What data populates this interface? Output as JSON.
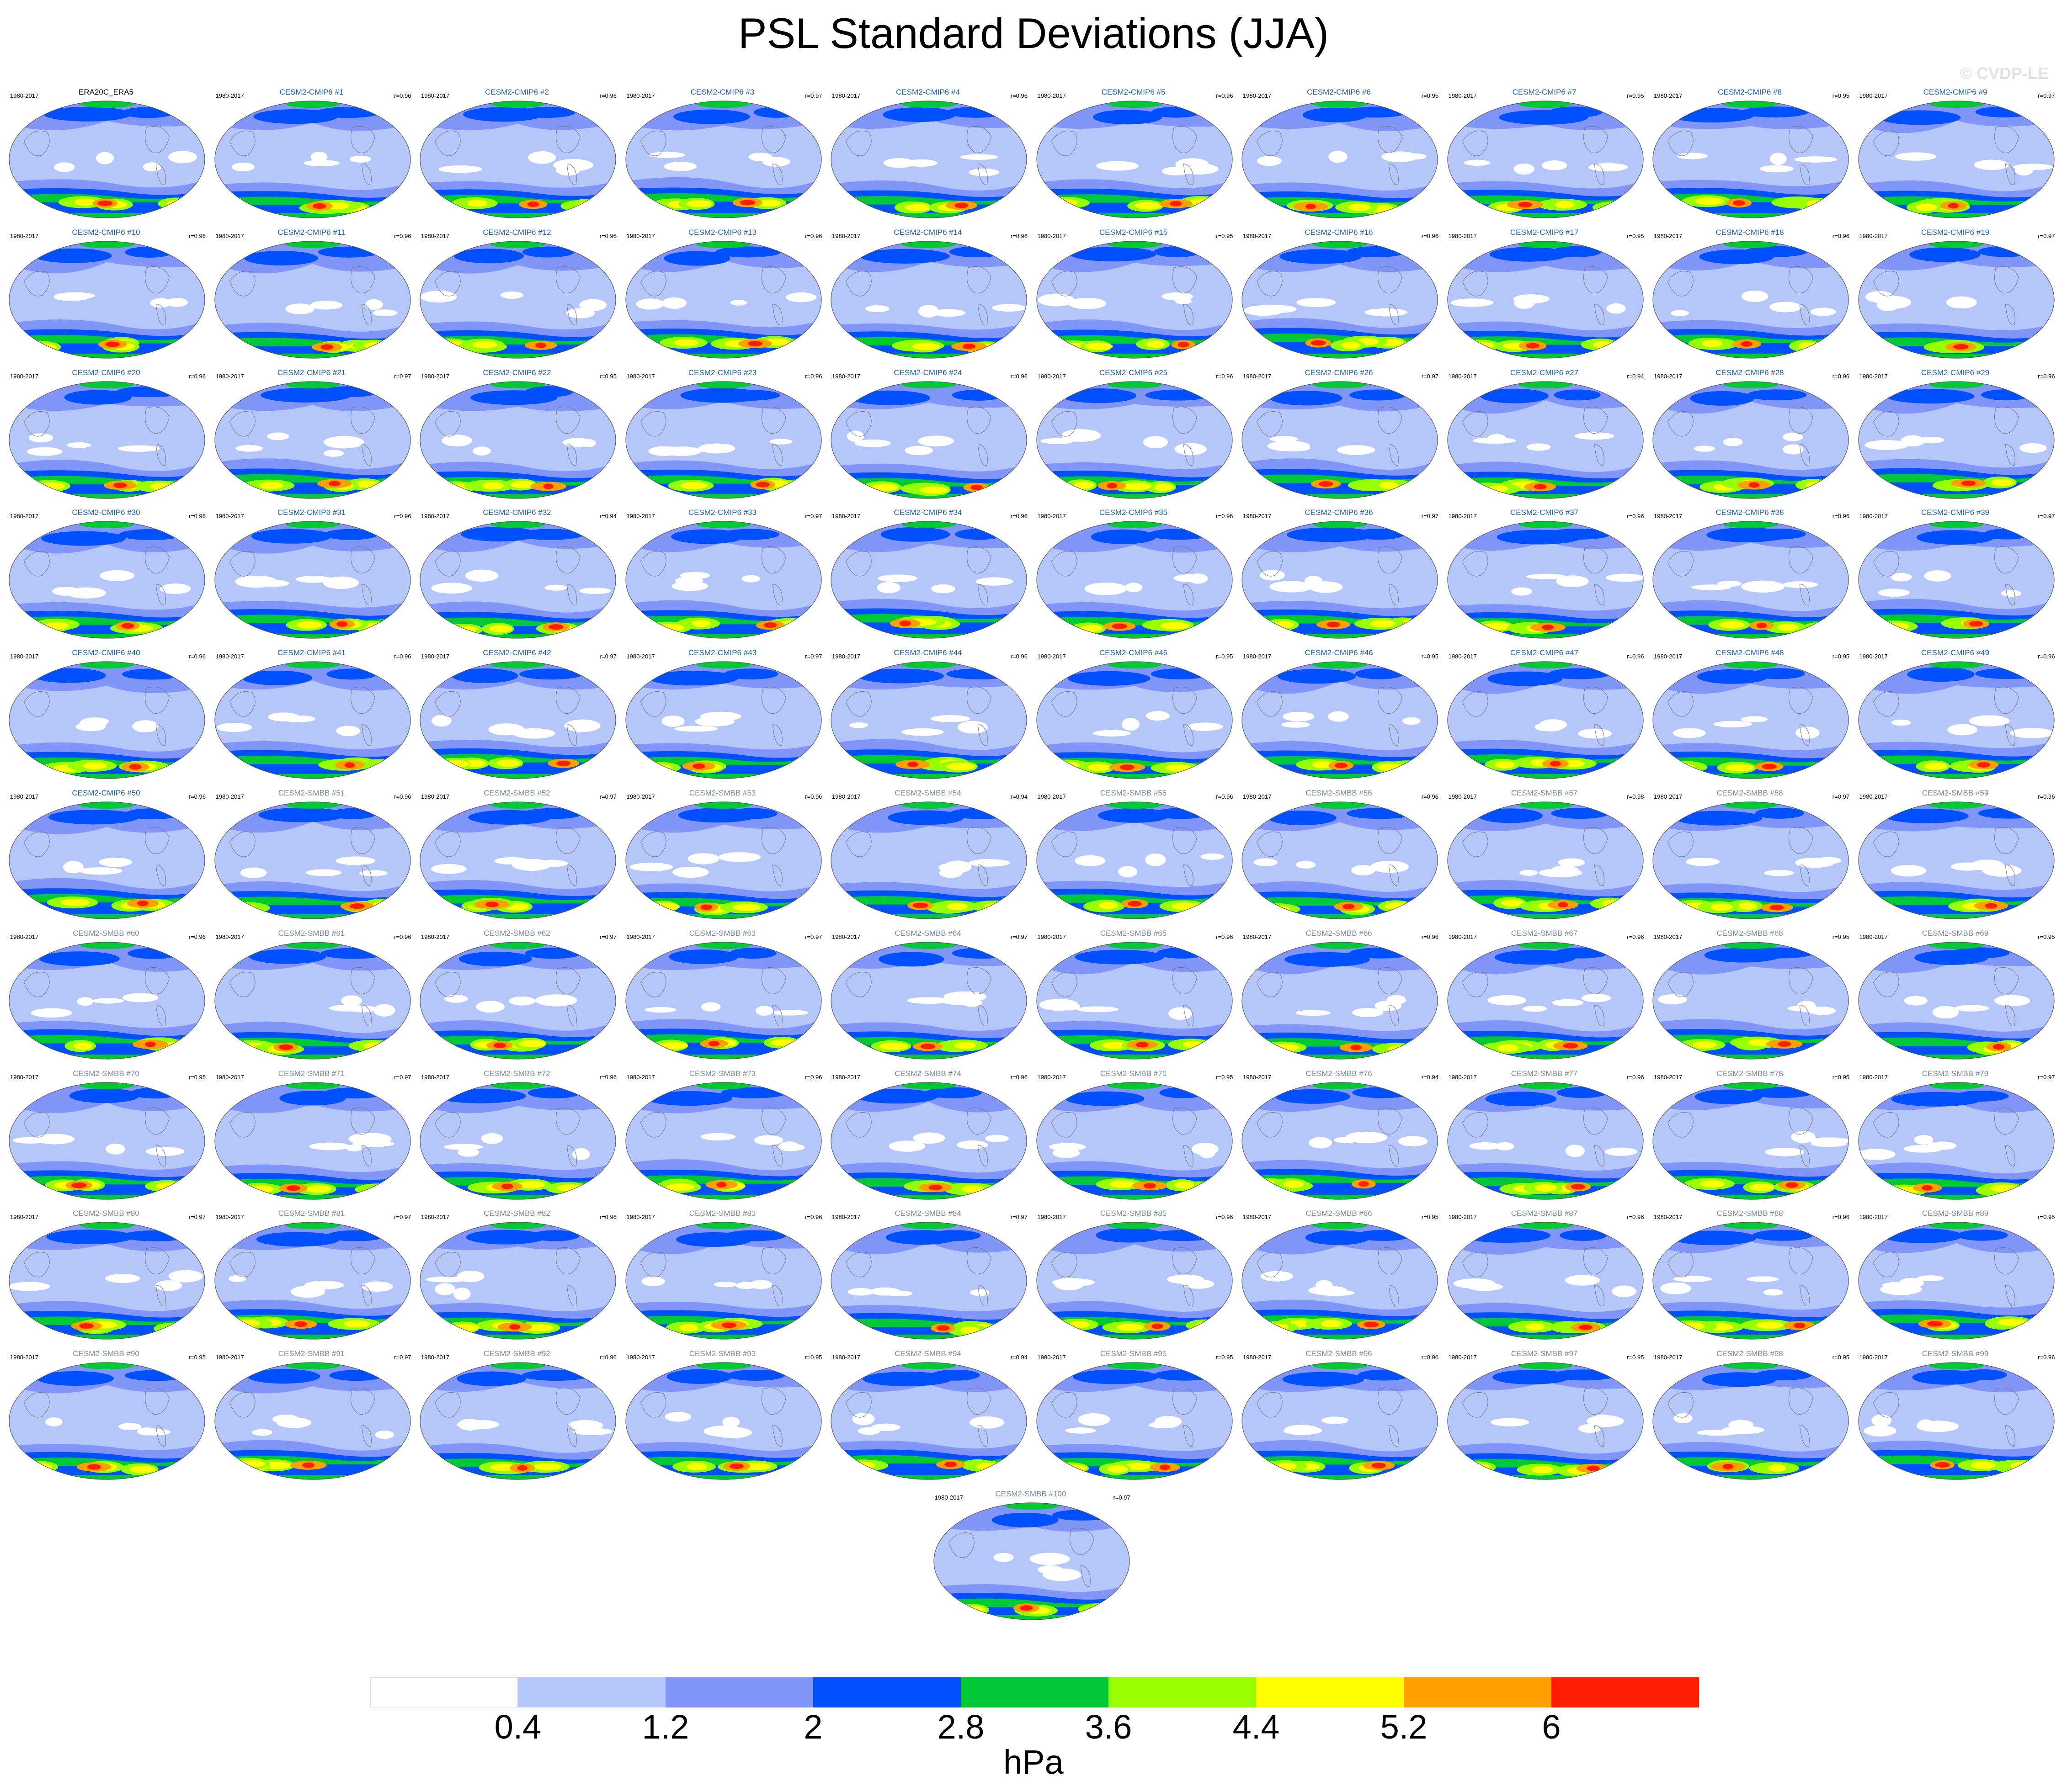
{
  "title": "PSL Standard Deviations (JJA)",
  "watermark": "© CVDP-LE",
  "colorbar": {
    "colors": [
      "#ffffff",
      "#b4c6fa",
      "#8296fa",
      "#0050ff",
      "#00c832",
      "#96ff00",
      "#ffff00",
      "#ffa000",
      "#ff1e00"
    ],
    "labels": [
      "0.4",
      "1.2",
      "2",
      "2.8",
      "3.6",
      "4.4",
      "5.2",
      "6"
    ],
    "units": "hPa"
  },
  "panels": [
    {
      "name": "ERA20C_ERA5",
      "years": "1980-2017",
      "r": ""
    },
    {
      "name": "CESM2-CMIP6 #1",
      "years": "1980-2017",
      "r": "r=0.96"
    },
    {
      "name": "CESM2-CMIP6 #2",
      "years": "1980-2017",
      "r": "r=0.96"
    },
    {
      "name": "CESM2-CMIP6 #3",
      "years": "1980-2017",
      "r": "r=0.97"
    },
    {
      "name": "CESM2-CMIP6 #4",
      "years": "1980-2017",
      "r": "r=0.96"
    },
    {
      "name": "CESM2-CMIP6 #5",
      "years": "1980-2017",
      "r": "r=0.96"
    },
    {
      "name": "CESM2-CMIP6 #6",
      "years": "1980-2017",
      "r": "r=0.95"
    },
    {
      "name": "CESM2-CMIP6 #7",
      "years": "1980-2017",
      "r": "r=0.95"
    },
    {
      "name": "CESM2-CMIP6 #8",
      "years": "1980-2017",
      "r": "r=0.95"
    },
    {
      "name": "CESM2-CMIP6 #9",
      "years": "1980-2017",
      "r": "r=0.97"
    },
    {
      "name": "CESM2-CMIP6 #10",
      "years": "1980-2017",
      "r": "r=0.96"
    },
    {
      "name": "CESM2-CMIP6 #11",
      "years": "1980-2017",
      "r": "r=0.96"
    },
    {
      "name": "CESM2-CMIP6 #12",
      "years": "1980-2017",
      "r": "r=0.96"
    },
    {
      "name": "CESM2-CMIP6 #13",
      "years": "1980-2017",
      "r": "r=0.96"
    },
    {
      "name": "CESM2-CMIP6 #14",
      "years": "1980-2017",
      "r": "r=0.96"
    },
    {
      "name": "CESM2-CMIP6 #15",
      "years": "1980-2017",
      "r": "r=0.95"
    },
    {
      "name": "CESM2-CMIP6 #16",
      "years": "1980-2017",
      "r": "r=0.96"
    },
    {
      "name": "CESM2-CMIP6 #17",
      "years": "1980-2017",
      "r": "r=0.95"
    },
    {
      "name": "CESM2-CMIP6 #18",
      "years": "1980-2017",
      "r": "r=0.96"
    },
    {
      "name": "CESM2-CMIP6 #19",
      "years": "1980-2017",
      "r": "r=0.97"
    },
    {
      "name": "CESM2-CMIP6 #20",
      "years": "1980-2017",
      "r": "r=0.96"
    },
    {
      "name": "CESM2-CMIP6 #21",
      "years": "1980-2017",
      "r": "r=0.97"
    },
    {
      "name": "CESM2-CMIP6 #22",
      "years": "1980-2017",
      "r": "r=0.95"
    },
    {
      "name": "CESM2-CMIP6 #23",
      "years": "1980-2017",
      "r": "r=0.96"
    },
    {
      "name": "CESM2-CMIP6 #24",
      "years": "1980-2017",
      "r": "r=0.96"
    },
    {
      "name": "CESM2-CMIP6 #25",
      "years": "1980-2017",
      "r": "r=0.96"
    },
    {
      "name": "CESM2-CMIP6 #26",
      "years": "1980-2017",
      "r": "r=0.97"
    },
    {
      "name": "CESM2-CMIP6 #27",
      "years": "1980-2017",
      "r": "r=0.94"
    },
    {
      "name": "CESM2-CMIP6 #28",
      "years": "1980-2017",
      "r": "r=0.96"
    },
    {
      "name": "CESM2-CMIP6 #29",
      "years": "1980-2017",
      "r": "r=0.96"
    },
    {
      "name": "CESM2-CMIP6 #30",
      "years": "1980-2017",
      "r": "r=0.96"
    },
    {
      "name": "CESM2-CMIP6 #31",
      "years": "1980-2017",
      "r": "r=0.96"
    },
    {
      "name": "CESM2-CMIP6 #32",
      "years": "1980-2017",
      "r": "r=0.94"
    },
    {
      "name": "CESM2-CMIP6 #33",
      "years": "1980-2017",
      "r": "r=0.97"
    },
    {
      "name": "CESM2-CMIP6 #34",
      "years": "1980-2017",
      "r": "r=0.96"
    },
    {
      "name": "CESM2-CMIP6 #35",
      "years": "1980-2017",
      "r": "r=0.96"
    },
    {
      "name": "CESM2-CMIP6 #36",
      "years": "1980-2017",
      "r": "r=0.97"
    },
    {
      "name": "CESM2-CMIP6 #37",
      "years": "1980-2017",
      "r": "r=0.96"
    },
    {
      "name": "CESM2-CMIP6 #38",
      "years": "1980-2017",
      "r": "r=0.96"
    },
    {
      "name": "CESM2-CMIP6 #39",
      "years": "1980-2017",
      "r": "r=0.97"
    },
    {
      "name": "CESM2-CMIP6 #40",
      "years": "1980-2017",
      "r": "r=0.96"
    },
    {
      "name": "CESM2-CMIP6 #41",
      "years": "1980-2017",
      "r": "r=0.96"
    },
    {
      "name": "CESM2-CMIP6 #42",
      "years": "1980-2017",
      "r": "r=0.97"
    },
    {
      "name": "CESM2-CMIP6 #43",
      "years": "1980-2017",
      "r": "r=0.97"
    },
    {
      "name": "CESM2-CMIP6 #44",
      "years": "1980-2017",
      "r": "r=0.96"
    },
    {
      "name": "CESM2-CMIP6 #45",
      "years": "1980-2017",
      "r": "r=0.95"
    },
    {
      "name": "CESM2-CMIP6 #46",
      "years": "1980-2017",
      "r": "r=0.95"
    },
    {
      "name": "CESM2-CMIP6 #47",
      "years": "1980-2017",
      "r": "r=0.96"
    },
    {
      "name": "CESM2-CMIP6 #48",
      "years": "1980-2017",
      "r": "r=0.95"
    },
    {
      "name": "CESM2-CMIP6 #49",
      "years": "1980-2017",
      "r": "r=0.96"
    },
    {
      "name": "CESM2-CMIP6 #50",
      "years": "1980-2017",
      "r": "r=0.96"
    },
    {
      "name": "CESM2-SMBB #51",
      "years": "1980-2017",
      "r": "r=0.96"
    },
    {
      "name": "CESM2-SMBB #52",
      "years": "1980-2017",
      "r": "r=0.97"
    },
    {
      "name": "CESM2-SMBB #53",
      "years": "1980-2017",
      "r": "r=0.96"
    },
    {
      "name": "CESM2-SMBB #54",
      "years": "1980-2017",
      "r": "r=0.94"
    },
    {
      "name": "CESM2-SMBB #55",
      "years": "1980-2017",
      "r": "r=0.96"
    },
    {
      "name": "CESM2-SMBB #56",
      "years": "1980-2017",
      "r": "r=0.96"
    },
    {
      "name": "CESM2-SMBB #57",
      "years": "1980-2017",
      "r": "r=0.98"
    },
    {
      "name": "CESM2-SMBB #58",
      "years": "1980-2017",
      "r": "r=0.97"
    },
    {
      "name": "CESM2-SMBB #59",
      "years": "1980-2017",
      "r": "r=0.96"
    },
    {
      "name": "CESM2-SMBB #60",
      "years": "1980-2017",
      "r": "r=0.96"
    },
    {
      "name": "CESM2-SMBB #61",
      "years": "1980-2017",
      "r": "r=0.96"
    },
    {
      "name": "CESM2-SMBB #62",
      "years": "1980-2017",
      "r": "r=0.97"
    },
    {
      "name": "CESM2-SMBB #63",
      "years": "1980-2017",
      "r": "r=0.97"
    },
    {
      "name": "CESM2-SMBB #64",
      "years": "1980-2017",
      "r": "r=0.97"
    },
    {
      "name": "CESM2-SMBB #65",
      "years": "1980-2017",
      "r": "r=0.96"
    },
    {
      "name": "CESM2-SMBB #66",
      "years": "1980-2017",
      "r": "r=0.96"
    },
    {
      "name": "CESM2-SMBB #67",
      "years": "1980-2017",
      "r": "r=0.96"
    },
    {
      "name": "CESM2-SMBB #68",
      "years": "1980-2017",
      "r": "r=0.95"
    },
    {
      "name": "CESM2-SMBB #69",
      "years": "1980-2017",
      "r": "r=0.95"
    },
    {
      "name": "CESM2-SMBB #70",
      "years": "1980-2017",
      "r": "r=0.95"
    },
    {
      "name": "CESM2-SMBB #71",
      "years": "1980-2017",
      "r": "r=0.97"
    },
    {
      "name": "CESM2-SMBB #72",
      "years": "1980-2017",
      "r": "r=0.96"
    },
    {
      "name": "CESM2-SMBB #73",
      "years": "1980-2017",
      "r": "r=0.96"
    },
    {
      "name": "CESM2-SMBB #74",
      "years": "1980-2017",
      "r": "r=0.96"
    },
    {
      "name": "CESM2-SMBB #75",
      "years": "1980-2017",
      "r": "r=0.95"
    },
    {
      "name": "CESM2-SMBB #76",
      "years": "1980-2017",
      "r": "r=0.94"
    },
    {
      "name": "CESM2-SMBB #77",
      "years": "1980-2017",
      "r": "r=0.96"
    },
    {
      "name": "CESM2-SMBB #78",
      "years": "1980-2017",
      "r": "r=0.95"
    },
    {
      "name": "CESM2-SMBB #79",
      "years": "1980-2017",
      "r": "r=0.97"
    },
    {
      "name": "CESM2-SMBB #80",
      "years": "1980-2017",
      "r": "r=0.97"
    },
    {
      "name": "CESM2-SMBB #81",
      "years": "1980-2017",
      "r": "r=0.97"
    },
    {
      "name": "CESM2-SMBB #82",
      "years": "1980-2017",
      "r": "r=0.96"
    },
    {
      "name": "CESM2-SMBB #83",
      "years": "1980-2017",
      "r": "r=0.96"
    },
    {
      "name": "CESM2-SMBB #84",
      "years": "1980-2017",
      "r": "r=0.97"
    },
    {
      "name": "CESM2-SMBB #85",
      "years": "1980-2017",
      "r": "r=0.96"
    },
    {
      "name": "CESM2-SMBB #86",
      "years": "1980-2017",
      "r": "r=0.95"
    },
    {
      "name": "CESM2-SMBB #87",
      "years": "1980-2017",
      "r": "r=0.96"
    },
    {
      "name": "CESM2-SMBB #88",
      "years": "1980-2017",
      "r": "r=0.96"
    },
    {
      "name": "CESM2-SMBB #89",
      "years": "1980-2017",
      "r": "r=0.95"
    },
    {
      "name": "CESM2-SMBB #90",
      "years": "1980-2017",
      "r": "r=0.95"
    },
    {
      "name": "CESM2-SMBB #91",
      "years": "1980-2017",
      "r": "r=0.97"
    },
    {
      "name": "CESM2-SMBB #92",
      "years": "1980-2017",
      "r": "r=0.96"
    },
    {
      "name": "CESM2-SMBB #93",
      "years": "1980-2017",
      "r": "r=0.95"
    },
    {
      "name": "CESM2-SMBB #94",
      "years": "1980-2017",
      "r": "r=0.94"
    },
    {
      "name": "CESM2-SMBB #95",
      "years": "1980-2017",
      "r": "r=0.95"
    },
    {
      "name": "CESM2-SMBB #96",
      "years": "1980-2017",
      "r": "r=0.96"
    },
    {
      "name": "CESM2-SMBB #97",
      "years": "1980-2017",
      "r": "r=0.95"
    },
    {
      "name": "CESM2-SMBB #98",
      "years": "1980-2017",
      "r": "r=0.95"
    },
    {
      "name": "CESM2-SMBB #99",
      "years": "1980-2017",
      "r": "r=0.96"
    },
    {
      "name": "CESM2-SMBB #100",
      "years": "1980-2017",
      "r": "r=0.97"
    }
  ]
}
